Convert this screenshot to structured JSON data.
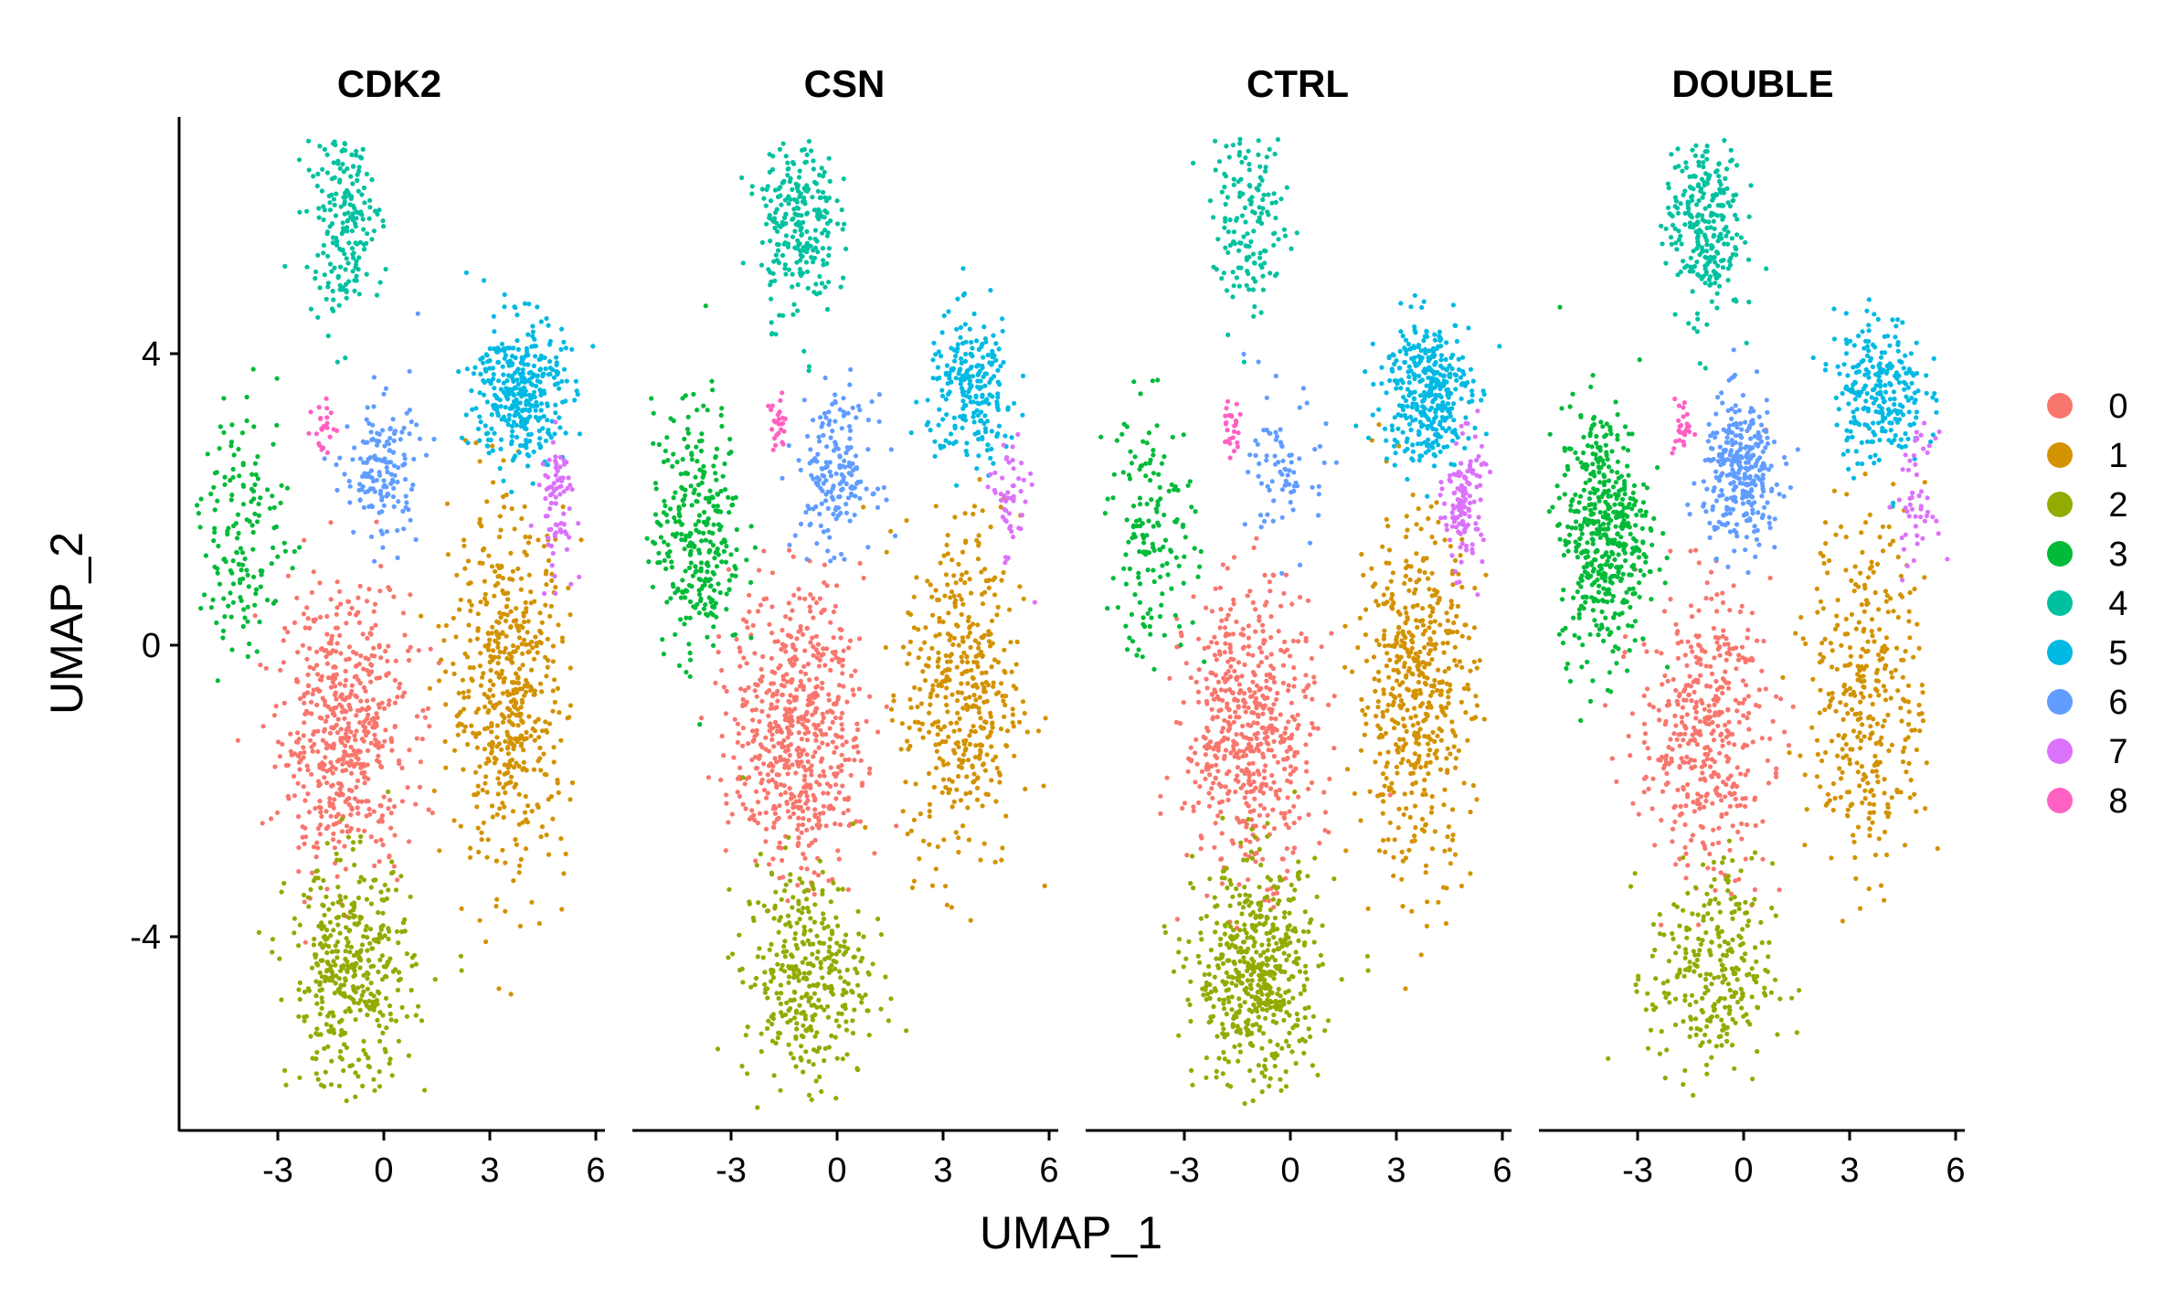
{
  "chart_data": {
    "type": "scatter",
    "xlabel": "UMAP_1",
    "ylabel": "UMAP_2",
    "xlim": [
      -6.2,
      6.2
    ],
    "ylim": [
      -6.7,
      7.0
    ],
    "x_ticks": [
      -3,
      0,
      3,
      6
    ],
    "x_tick_labels": [
      "-3",
      "0",
      "3",
      "6"
    ],
    "y_ticks": [
      -4,
      0,
      4
    ],
    "y_tick_labels": [
      "-4",
      "0",
      "4"
    ],
    "panels": [
      "CDK2",
      "CSN",
      "CTRL",
      "DOUBLE"
    ],
    "legend": {
      "position": "right",
      "entries": [
        {
          "label": "0",
          "color": "#F8766D"
        },
        {
          "label": "1",
          "color": "#D39200"
        },
        {
          "label": "2",
          "color": "#93AA00"
        },
        {
          "label": "3",
          "color": "#00BA38"
        },
        {
          "label": "4",
          "color": "#00C19F"
        },
        {
          "label": "5",
          "color": "#00B9E3"
        },
        {
          "label": "6",
          "color": "#619CFF"
        },
        {
          "label": "7",
          "color": "#DB72FB"
        },
        {
          "label": "8",
          "color": "#FF61C3"
        }
      ]
    },
    "cluster_centers": [
      {
        "cluster": "0",
        "x": -1.4,
        "y": -1.3
      },
      {
        "cluster": "1",
        "x": 3.4,
        "y": -0.8
      },
      {
        "cluster": "2",
        "x": -1.2,
        "y": -4.6
      },
      {
        "cluster": "3",
        "x": -4.3,
        "y": 1.4
      },
      {
        "cluster": "4",
        "x": -1.4,
        "y": 5.6
      },
      {
        "cluster": "5",
        "x": 3.7,
        "y": 3.3
      },
      {
        "cluster": "6",
        "x": -0.3,
        "y": 2.2
      },
      {
        "cluster": "7",
        "x": 4.8,
        "y": 1.8
      },
      {
        "cluster": "8",
        "x": -2.0,
        "y": 2.8
      }
    ],
    "panel_cluster_weights": {
      "CDK2": [
        {
          "cluster": "0",
          "w": 0.22
        },
        {
          "cluster": "1",
          "w": 0.21
        },
        {
          "cluster": "2",
          "w": 0.16
        },
        {
          "cluster": "3",
          "w": 0.06
        },
        {
          "cluster": "4",
          "w": 0.08
        },
        {
          "cluster": "5",
          "w": 0.14
        },
        {
          "cluster": "6",
          "w": 0.06
        },
        {
          "cluster": "7",
          "w": 0.03
        },
        {
          "cluster": "8",
          "w": 0.01
        }
      ],
      "CSN": [
        {
          "cluster": "0",
          "w": 0.24
        },
        {
          "cluster": "1",
          "w": 0.17
        },
        {
          "cluster": "2",
          "w": 0.14
        },
        {
          "cluster": "3",
          "w": 0.12
        },
        {
          "cluster": "4",
          "w": 0.1
        },
        {
          "cluster": "5",
          "w": 0.09
        },
        {
          "cluster": "6",
          "w": 0.07
        },
        {
          "cluster": "7",
          "w": 0.02
        },
        {
          "cluster": "8",
          "w": 0.01
        }
      ],
      "CTRL": [
        {
          "cluster": "0",
          "w": 0.22
        },
        {
          "cluster": "1",
          "w": 0.2
        },
        {
          "cluster": "2",
          "w": 0.21
        },
        {
          "cluster": "3",
          "w": 0.06
        },
        {
          "cluster": "4",
          "w": 0.06
        },
        {
          "cluster": "5",
          "w": 0.14
        },
        {
          "cluster": "6",
          "w": 0.03
        },
        {
          "cluster": "7",
          "w": 0.05
        },
        {
          "cluster": "8",
          "w": 0.01
        }
      ],
      "DOUBLE": [
        {
          "cluster": "0",
          "w": 0.17
        },
        {
          "cluster": "1",
          "w": 0.14
        },
        {
          "cluster": "2",
          "w": 0.11
        },
        {
          "cluster": "3",
          "w": 0.19
        },
        {
          "cluster": "4",
          "w": 0.11
        },
        {
          "cluster": "5",
          "w": 0.1
        },
        {
          "cluster": "6",
          "w": 0.12
        },
        {
          "cluster": "7",
          "w": 0.02
        },
        {
          "cluster": "8",
          "w": 0.01
        }
      ]
    },
    "grid": false
  }
}
